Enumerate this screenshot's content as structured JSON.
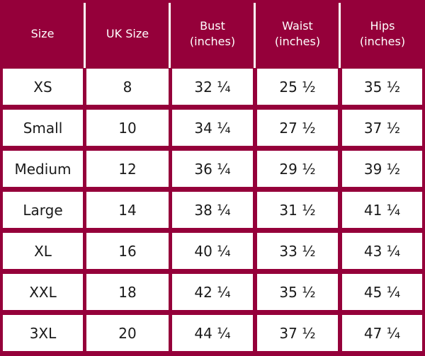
{
  "colors": {
    "frame": "#95003a",
    "cell_bg": "#ffffff",
    "header_text": "#ffffff",
    "body_text": "#1a1a1a"
  },
  "table": {
    "headers": [
      {
        "line1": "Size",
        "line2": ""
      },
      {
        "line1": "UK Size",
        "line2": ""
      },
      {
        "line1": "Bust",
        "line2": "(inches)"
      },
      {
        "line1": "Waist",
        "line2": "(inches)"
      },
      {
        "line1": "Hips",
        "line2": "(inches)"
      }
    ],
    "rows": [
      [
        "XS",
        "8",
        "32 ¼",
        "25 ½",
        "35 ½"
      ],
      [
        "Small",
        "10",
        "34 ¼",
        "27 ½",
        "37 ½"
      ],
      [
        "Medium",
        "12",
        "36 ¼",
        "29 ½",
        "39 ½"
      ],
      [
        "Large",
        "14",
        "38 ¼",
        "31 ½",
        "41 ¼"
      ],
      [
        "XL",
        "16",
        "40 ¼",
        "33 ½",
        "43 ¼"
      ],
      [
        "XXL",
        "18",
        "42 ¼",
        "35 ½",
        "45 ¼"
      ],
      [
        "3XL",
        "20",
        "44 ¼",
        "37 ½",
        "47 ¼"
      ]
    ]
  }
}
